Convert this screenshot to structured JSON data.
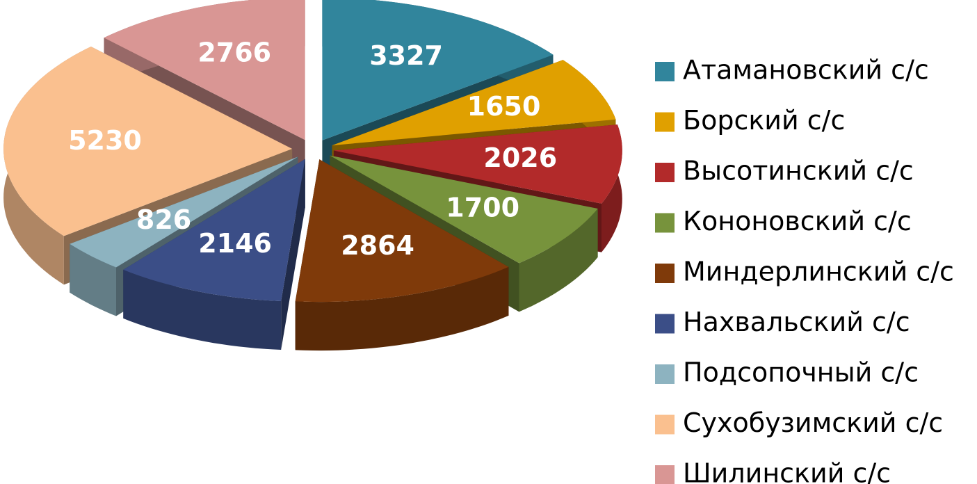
{
  "chart_data": {
    "type": "pie",
    "categories": [
      "Атамановский с/с",
      "Борский с/с",
      "Высотинский с/с",
      "Кононовский с/с",
      "Миндерлинский с/с",
      "Нахвальский с/с",
      "Подсопочный с/с",
      "Сухобузимский с/с",
      "Шилинский с/с"
    ],
    "values": [
      3327,
      1650,
      2026,
      1700,
      2864,
      2146,
      826,
      5230,
      2766
    ],
    "colors": [
      "#31859c",
      "#e0a000",
      "#b22a2a",
      "#77933c",
      "#7f3a0a",
      "#3b4e87",
      "#8db3c0",
      "#fac08f",
      "#d99694"
    ],
    "legend": "right"
  }
}
